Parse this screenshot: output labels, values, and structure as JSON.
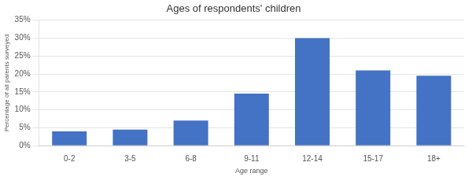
{
  "chart_data": {
    "type": "bar",
    "title": "Ages of respondents' children",
    "categories": [
      "0-2",
      "3-5",
      "6-8",
      "9-11",
      "12-14",
      "15-17",
      "18+"
    ],
    "values": [
      4,
      4.5,
      7,
      14.5,
      30,
      21,
      19.5
    ],
    "color": "#4472C4",
    "xlabel": "Age range",
    "ylabel": "Percentage of all parents surveyed",
    "ylim": [
      0,
      35
    ],
    "yticks": [
      {
        "value": 0,
        "label": "0%"
      },
      {
        "value": 5,
        "label": "5%"
      },
      {
        "value": 10,
        "label": "10%"
      },
      {
        "value": 15,
        "label": "15%"
      },
      {
        "value": 20,
        "label": "20%"
      },
      {
        "value": 25,
        "label": "25%"
      },
      {
        "value": 30,
        "label": "30%"
      },
      {
        "value": 35,
        "label": "35%"
      }
    ],
    "grid": true
  }
}
